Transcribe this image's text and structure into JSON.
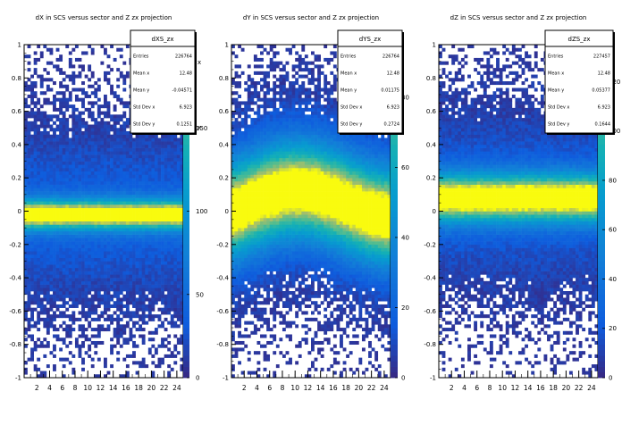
{
  "chart_data": [
    {
      "type": "heatmap",
      "title": "dX in SCS versus sector and Z zx projection",
      "stats": {
        "name": "dXS_zx",
        "rows": [
          {
            "label": "Entries",
            "value": "226764"
          },
          {
            "label": "Mean x",
            "value": "12.48"
          },
          {
            "label": "Mean y",
            "value": "-0.04571"
          },
          {
            "label": "Std Dev x",
            "value": "6.923"
          },
          {
            "label": "Std Dev y",
            "value": "0.1251"
          }
        ]
      },
      "x_ticks": [
        "2",
        "4",
        "6",
        "8",
        "10",
        "12",
        "14",
        "16",
        "18",
        "20",
        "22",
        "24"
      ],
      "y_ticks": [
        "-1",
        "-0.8",
        "-0.6",
        "-0.4",
        "-0.2",
        "0",
        "0.2",
        "0.4",
        "0.6",
        "0.8",
        "1"
      ],
      "xlim": [
        0,
        25
      ],
      "ylim": [
        -1,
        1
      ],
      "z_ticks": [
        "0",
        "50",
        "100",
        "150"
      ],
      "z_max": 200,
      "peak_y": -0.02,
      "peak_width": 0.06,
      "clipped_axis_labels": [
        "x",
        "x"
      ]
    },
    {
      "type": "heatmap",
      "title": "dY in SCS versus sector and Z zx projection",
      "stats": {
        "name": "dYS_zx",
        "rows": [
          {
            "label": "Entries",
            "value": "226764"
          },
          {
            "label": "Mean x",
            "value": "12.48"
          },
          {
            "label": "Mean y",
            "value": "0.01175"
          },
          {
            "label": "Std Dev x",
            "value": "6.923"
          },
          {
            "label": "Std Dev y",
            "value": "0.2724"
          }
        ]
      },
      "x_ticks": [
        "2",
        "4",
        "6",
        "8",
        "10",
        "12",
        "14",
        "16",
        "18",
        "20",
        "22",
        "24"
      ],
      "y_ticks": [
        "-1",
        "-0.8",
        "-0.6",
        "-0.4",
        "-0.2",
        "0",
        "0.2",
        "0.4",
        "0.6",
        "0.8",
        "1"
      ],
      "xlim": [
        0,
        25
      ],
      "ylim": [
        -1,
        1
      ],
      "z_ticks": [
        "0",
        "20",
        "40",
        "60",
        "80"
      ],
      "z_max": 95,
      "peak_y": 0.05,
      "peak_width": 0.2,
      "clipped_axis_labels": []
    },
    {
      "type": "heatmap",
      "title": "dZ in SCS versus sector and Z zx projection",
      "stats": {
        "name": "dZS_zx",
        "rows": [
          {
            "label": "Entries",
            "value": "227457"
          },
          {
            "label": "Mean x",
            "value": "12.48"
          },
          {
            "label": "Mean y",
            "value": "0.05377"
          },
          {
            "label": "Std Dev x",
            "value": "6.923"
          },
          {
            "label": "Std Dev y",
            "value": "0.1644"
          }
        ]
      },
      "x_ticks": [
        "2",
        "4",
        "6",
        "8",
        "10",
        "12",
        "14",
        "16",
        "18",
        "20",
        "22",
        "24"
      ],
      "y_ticks": [
        "-1",
        "-0.8",
        "-0.6",
        "-0.4",
        "-0.2",
        "0",
        "0.2",
        "0.4",
        "0.6",
        "0.8",
        "1"
      ],
      "xlim": [
        0,
        25
      ],
      "ylim": [
        -1,
        1
      ],
      "z_ticks": [
        "0",
        "20",
        "40",
        "60",
        "80",
        "100",
        "120"
      ],
      "z_max": 135,
      "peak_y": 0.08,
      "peak_width": 0.1,
      "clipped_axis_labels": []
    }
  ]
}
